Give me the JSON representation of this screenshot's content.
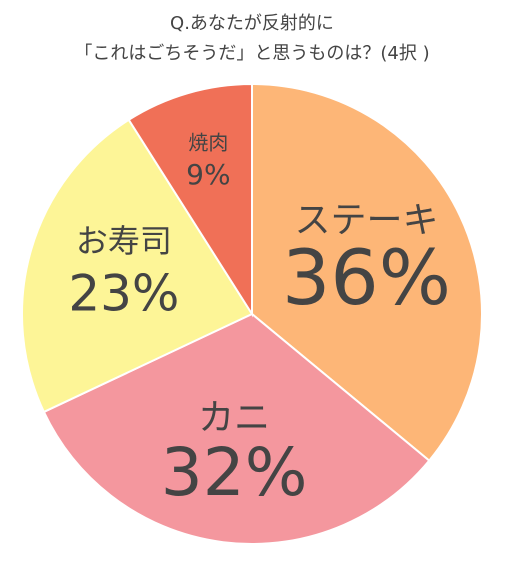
{
  "chart_data": {
    "type": "pie",
    "title": [
      "Q.あなたが反射的に",
      "「これはごちそうだ」と思うものは？(4択 )"
    ],
    "categories": [
      "ステーキ",
      "カニ",
      "お寿司",
      "焼肉"
    ],
    "values": [
      36,
      32,
      23,
      9
    ],
    "value_labels": [
      "36%",
      "32%",
      "23%",
      "9%"
    ],
    "colors": [
      "#fdb677",
      "#f4979e",
      "#fdf597",
      "#f07057"
    ]
  }
}
